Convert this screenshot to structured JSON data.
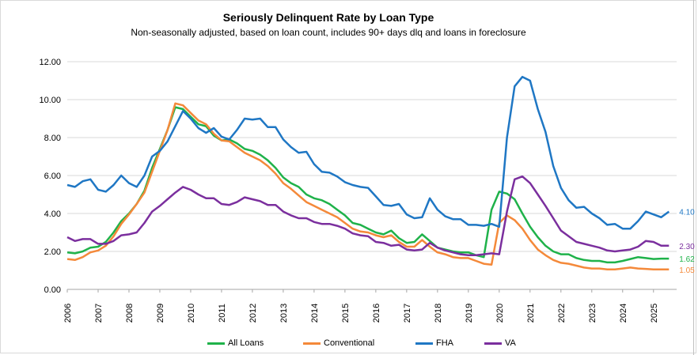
{
  "chart_data": {
    "type": "line",
    "title": "Seriously Delinquent Rate by Loan Type",
    "subtitle": "Non-seasonally adjusted, based on loan count, includes 90+ days dlq and loans in foreclosure",
    "xlabel": "",
    "ylabel": "",
    "xlim": [
      2006,
      2025.75
    ],
    "ylim": [
      0,
      12
    ],
    "y_ticks": [
      "0.00",
      "2.00",
      "4.00",
      "6.00",
      "8.00",
      "10.00",
      "12.00"
    ],
    "y_tick_values": [
      0,
      2,
      4,
      6,
      8,
      10,
      12
    ],
    "x_ticks": [
      "2006",
      "2007",
      "2008",
      "2009",
      "2010",
      "2011",
      "2012",
      "2013",
      "2014",
      "2015",
      "2016",
      "2017",
      "2018",
      "2019",
      "2020",
      "2021",
      "2022",
      "2023",
      "2024",
      "2025"
    ],
    "x_tick_values": [
      2006,
      2007,
      2008,
      2009,
      2010,
      2011,
      2012,
      2013,
      2014,
      2015,
      2016,
      2017,
      2018,
      2019,
      2020,
      2021,
      2022,
      2023,
      2024,
      2025
    ],
    "grid": "horizontal",
    "legend_position": "bottom",
    "series": [
      {
        "name": "All Loans",
        "color": "#1fb24a",
        "end_label": "1.62",
        "x": [
          2006,
          2006.25,
          2006.5,
          2006.75,
          2007,
          2007.25,
          2007.5,
          2007.75,
          2008,
          2008.25,
          2008.5,
          2008.75,
          2009,
          2009.25,
          2009.5,
          2009.75,
          2010,
          2010.25,
          2010.5,
          2010.75,
          2011,
          2011.25,
          2011.5,
          2011.75,
          2012,
          2012.25,
          2012.5,
          2012.75,
          2013,
          2013.25,
          2013.5,
          2013.75,
          2014,
          2014.25,
          2014.5,
          2014.75,
          2015,
          2015.25,
          2015.5,
          2015.75,
          2016,
          2016.25,
          2016.5,
          2016.75,
          2017,
          2017.25,
          2017.5,
          2017.75,
          2018,
          2018.25,
          2018.5,
          2018.75,
          2019,
          2019.25,
          2019.5,
          2019.75,
          2020,
          2020.25,
          2020.5,
          2020.75,
          2021,
          2021.25,
          2021.5,
          2021.75,
          2022,
          2022.25,
          2022.5,
          2022.75,
          2023,
          2023.25,
          2023.5,
          2023.75,
          2024,
          2024.25,
          2024.5,
          2024.75,
          2025,
          2025.25,
          2025.5
        ],
        "values": [
          1.95,
          1.9,
          2.0,
          2.2,
          2.25,
          2.5,
          3.0,
          3.6,
          4.0,
          4.5,
          5.2,
          6.4,
          7.4,
          8.4,
          9.6,
          9.5,
          9.1,
          8.7,
          8.6,
          8.1,
          7.85,
          7.9,
          7.7,
          7.4,
          7.3,
          7.1,
          6.8,
          6.4,
          5.9,
          5.6,
          5.4,
          5.0,
          4.8,
          4.7,
          4.5,
          4.2,
          3.9,
          3.5,
          3.4,
          3.2,
          3.0,
          2.9,
          3.1,
          2.7,
          2.45,
          2.5,
          2.9,
          2.55,
          2.2,
          2.1,
          2.0,
          1.95,
          1.95,
          1.8,
          1.7,
          4.2,
          5.15,
          5.05,
          4.75,
          4.0,
          3.3,
          2.75,
          2.3,
          2.0,
          1.85,
          1.85,
          1.65,
          1.55,
          1.5,
          1.5,
          1.42,
          1.42,
          1.5,
          1.6,
          1.7,
          1.65,
          1.6,
          1.62,
          1.62
        ]
      },
      {
        "name": "Conventional",
        "color": "#f4893a",
        "end_label": "1.05",
        "x": [
          2006,
          2006.25,
          2006.5,
          2006.75,
          2007,
          2007.25,
          2007.5,
          2007.75,
          2008,
          2008.25,
          2008.5,
          2008.75,
          2009,
          2009.25,
          2009.5,
          2009.75,
          2010,
          2010.25,
          2010.5,
          2010.75,
          2011,
          2011.25,
          2011.5,
          2011.75,
          2012,
          2012.25,
          2012.5,
          2012.75,
          2013,
          2013.25,
          2013.5,
          2013.75,
          2014,
          2014.25,
          2014.5,
          2014.75,
          2015,
          2015.25,
          2015.5,
          2015.75,
          2016,
          2016.25,
          2016.5,
          2016.75,
          2017,
          2017.25,
          2017.5,
          2017.75,
          2018,
          2018.25,
          2018.5,
          2018.75,
          2019,
          2019.25,
          2019.5,
          2019.75,
          2020,
          2020.25,
          2020.5,
          2020.75,
          2021,
          2021.25,
          2021.5,
          2021.75,
          2022,
          2022.25,
          2022.5,
          2022.75,
          2023,
          2023.25,
          2023.5,
          2023.75,
          2024,
          2024.25,
          2024.5,
          2024.75,
          2025,
          2025.25,
          2025.5
        ],
        "values": [
          1.6,
          1.55,
          1.7,
          1.95,
          2.05,
          2.3,
          2.8,
          3.45,
          3.95,
          4.5,
          5.1,
          6.2,
          7.3,
          8.4,
          9.8,
          9.7,
          9.3,
          8.9,
          8.7,
          8.2,
          7.85,
          7.8,
          7.5,
          7.2,
          7.0,
          6.8,
          6.5,
          6.1,
          5.6,
          5.3,
          4.95,
          4.6,
          4.4,
          4.2,
          4.0,
          3.8,
          3.5,
          3.2,
          3.05,
          3.0,
          2.85,
          2.75,
          2.85,
          2.5,
          2.25,
          2.25,
          2.6,
          2.25,
          1.95,
          1.85,
          1.7,
          1.65,
          1.65,
          1.5,
          1.35,
          1.3,
          3.5,
          3.9,
          3.65,
          3.2,
          2.6,
          2.1,
          1.8,
          1.55,
          1.4,
          1.35,
          1.25,
          1.15,
          1.1,
          1.1,
          1.05,
          1.05,
          1.1,
          1.15,
          1.1,
          1.08,
          1.05,
          1.05,
          1.05
        ]
      },
      {
        "name": "FHA",
        "color": "#1f77c4",
        "end_label": "4.10",
        "x": [
          2006,
          2006.25,
          2006.5,
          2006.75,
          2007,
          2007.25,
          2007.5,
          2007.75,
          2008,
          2008.25,
          2008.5,
          2008.75,
          2009,
          2009.25,
          2009.5,
          2009.75,
          2010,
          2010.25,
          2010.5,
          2010.75,
          2011,
          2011.25,
          2011.5,
          2011.75,
          2012,
          2012.25,
          2012.5,
          2012.75,
          2013,
          2013.25,
          2013.5,
          2013.75,
          2014,
          2014.25,
          2014.5,
          2014.75,
          2015,
          2015.25,
          2015.5,
          2015.75,
          2016,
          2016.25,
          2016.5,
          2016.75,
          2017,
          2017.25,
          2017.5,
          2017.75,
          2018,
          2018.25,
          2018.5,
          2018.75,
          2019,
          2019.25,
          2019.5,
          2019.75,
          2020,
          2020.25,
          2020.5,
          2020.75,
          2021,
          2021.25,
          2021.5,
          2021.75,
          2022,
          2022.25,
          2022.5,
          2022.75,
          2023,
          2023.25,
          2023.5,
          2023.75,
          2024,
          2024.25,
          2024.5,
          2024.75,
          2025,
          2025.25,
          2025.5
        ],
        "values": [
          5.5,
          5.4,
          5.7,
          5.8,
          5.25,
          5.15,
          5.5,
          6.0,
          5.6,
          5.4,
          6.0,
          7.0,
          7.3,
          7.8,
          8.6,
          9.4,
          9.0,
          8.5,
          8.25,
          8.5,
          8.05,
          7.9,
          8.4,
          9.0,
          8.95,
          9.0,
          8.55,
          8.55,
          7.9,
          7.5,
          7.2,
          7.25,
          6.6,
          6.2,
          6.15,
          5.95,
          5.65,
          5.5,
          5.4,
          5.35,
          4.9,
          4.45,
          4.4,
          4.5,
          3.95,
          3.75,
          3.8,
          4.8,
          4.2,
          3.85,
          3.7,
          3.7,
          3.4,
          3.4,
          3.35,
          3.45,
          3.3,
          8.0,
          10.7,
          11.2,
          11.0,
          9.5,
          8.3,
          6.5,
          5.35,
          4.7,
          4.3,
          4.35,
          4.0,
          3.75,
          3.4,
          3.45,
          3.2,
          3.2,
          3.6,
          4.1,
          3.95,
          3.8,
          4.1
        ]
      },
      {
        "name": "VA",
        "color": "#7b2f9e",
        "end_label": "2.30",
        "x": [
          2006,
          2006.25,
          2006.5,
          2006.75,
          2007,
          2007.25,
          2007.5,
          2007.75,
          2008,
          2008.25,
          2008.5,
          2008.75,
          2009,
          2009.25,
          2009.5,
          2009.75,
          2010,
          2010.25,
          2010.5,
          2010.75,
          2011,
          2011.25,
          2011.5,
          2011.75,
          2012,
          2012.25,
          2012.5,
          2012.75,
          2013,
          2013.25,
          2013.5,
          2013.75,
          2014,
          2014.25,
          2014.5,
          2014.75,
          2015,
          2015.25,
          2015.5,
          2015.75,
          2016,
          2016.25,
          2016.5,
          2016.75,
          2017,
          2017.25,
          2017.5,
          2017.75,
          2018,
          2018.25,
          2018.5,
          2018.75,
          2019,
          2019.25,
          2019.5,
          2019.75,
          2020,
          2020.25,
          2020.5,
          2020.75,
          2021,
          2021.25,
          2021.5,
          2021.75,
          2022,
          2022.25,
          2022.5,
          2022.75,
          2023,
          2023.25,
          2023.5,
          2023.75,
          2024,
          2024.25,
          2024.5,
          2024.75,
          2025,
          2025.25,
          2025.5
        ],
        "values": [
          2.75,
          2.55,
          2.65,
          2.65,
          2.4,
          2.4,
          2.55,
          2.85,
          2.9,
          3.0,
          3.5,
          4.1,
          4.4,
          4.75,
          5.1,
          5.4,
          5.25,
          5.0,
          4.8,
          4.8,
          4.5,
          4.45,
          4.6,
          4.85,
          4.75,
          4.65,
          4.45,
          4.45,
          4.1,
          3.9,
          3.75,
          3.75,
          3.55,
          3.45,
          3.45,
          3.35,
          3.2,
          2.95,
          2.85,
          2.8,
          2.5,
          2.45,
          2.3,
          2.35,
          2.1,
          2.05,
          2.1,
          2.45,
          2.2,
          2.05,
          1.95,
          1.85,
          1.8,
          1.8,
          1.85,
          1.9,
          1.85,
          4.1,
          5.8,
          5.95,
          5.6,
          5.0,
          4.4,
          3.75,
          3.1,
          2.8,
          2.5,
          2.4,
          2.3,
          2.2,
          2.05,
          2.0,
          2.05,
          2.1,
          2.25,
          2.55,
          2.5,
          2.3,
          2.3
        ]
      }
    ]
  }
}
